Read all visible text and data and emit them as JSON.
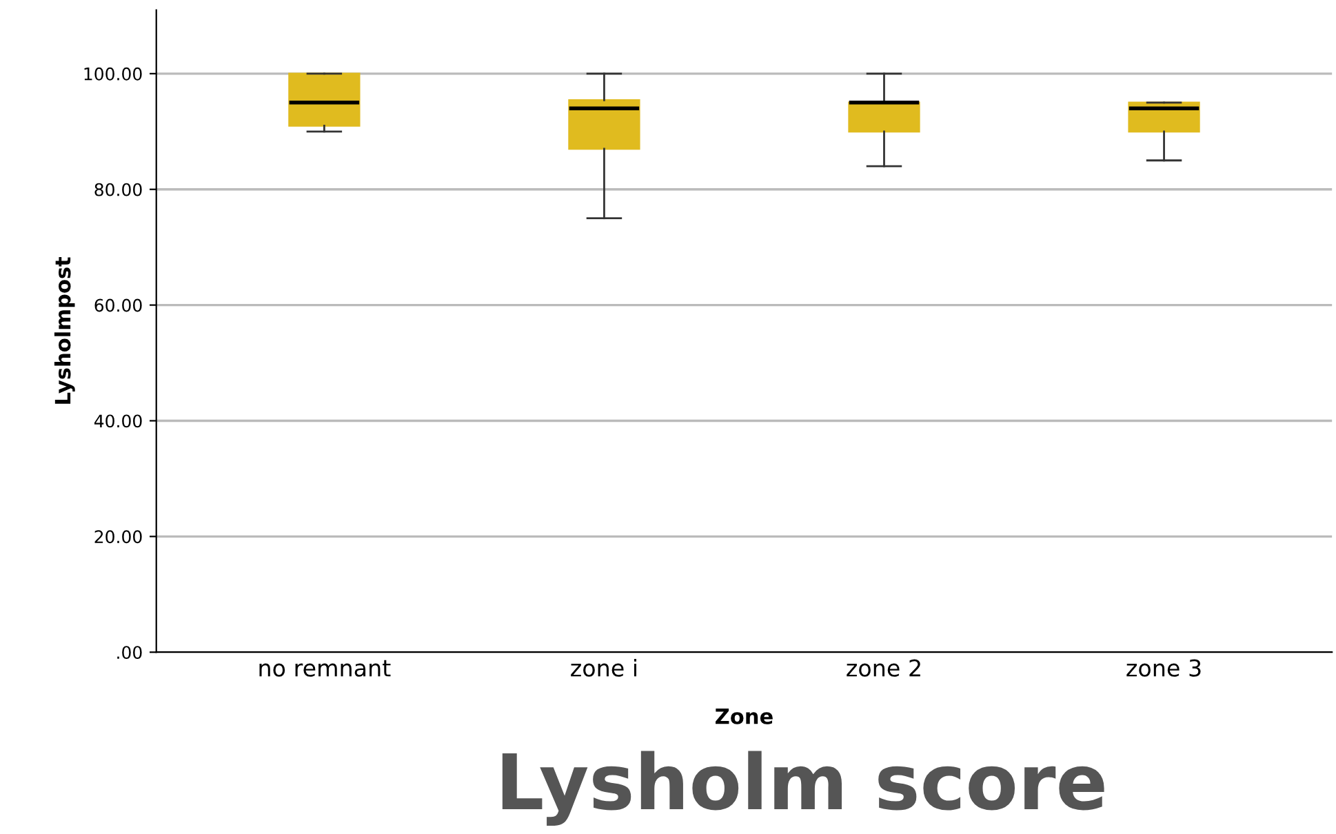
{
  "chart_data": {
    "type": "box",
    "title": "Lysholm score",
    "xlabel": "Zone",
    "ylabel": "Lysholmpost",
    "categories": [
      "no remnant",
      "zone i",
      "zone 2",
      "zone 3"
    ],
    "color": "#e0bb1f",
    "boxes": [
      {
        "low": 90,
        "q1": 91,
        "median": 95,
        "q3": 100,
        "high": 100
      },
      {
        "low": 75,
        "q1": 87,
        "median": 94,
        "q3": 95.4,
        "high": 100
      },
      {
        "low": 84,
        "q1": 90,
        "median": 95,
        "q3": 95,
        "high": 100
      },
      {
        "low": 85,
        "q1": 90,
        "median": 94,
        "q3": 95,
        "high": 95
      }
    ],
    "ylim": [
      0,
      111
    ],
    "yticks": [
      {
        "value": 0,
        "label": ".00"
      },
      {
        "value": 20,
        "label": "20.00"
      },
      {
        "value": 40,
        "label": "40.00"
      },
      {
        "value": 60,
        "label": "60.00"
      },
      {
        "value": 80,
        "label": "80.00"
      },
      {
        "value": 100,
        "label": "100.00"
      }
    ],
    "grid": "y"
  }
}
